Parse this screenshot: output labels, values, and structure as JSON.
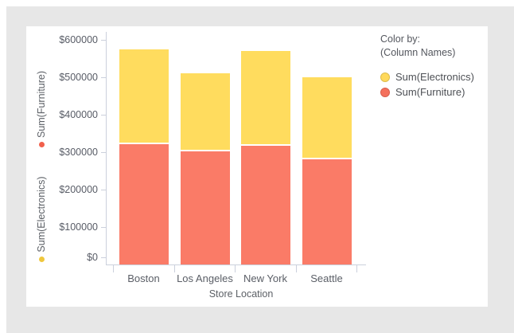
{
  "frame": {
    "background_color": "#e7e7e7",
    "card_color": "#ffffff",
    "axis_line_color": "#cbd0dc"
  },
  "legend": {
    "title": "Color by:",
    "subtitle": "(Column Names)",
    "items": [
      {
        "label": "Sum(Electronics)",
        "color": "#FFD95B",
        "border": "#DDBC4C"
      },
      {
        "label": "Sum(Furniture)",
        "color": "#F4705C",
        "border": "#D75F4E"
      }
    ]
  },
  "chart_data": {
    "type": "bar",
    "stacked": true,
    "categories": [
      "Boston",
      "Los Angeles",
      "New York",
      "Seattle"
    ],
    "series": [
      {
        "name": "Sum(Furniture)",
        "color": "#FA7B67",
        "values": [
          322000,
          303000,
          318000,
          281000
        ]
      },
      {
        "name": "Sum(Electronics)",
        "color": "#FFDC5E",
        "values": [
          253000,
          209000,
          254000,
          219000
        ]
      }
    ],
    "totals": [
      575000,
      512000,
      572000,
      500000
    ],
    "xlabel": "Store Location",
    "y_axis_labels": [
      {
        "label": "Sum(Furniture)",
        "dot": "#F1604C"
      },
      {
        "label": "Sum(Electronics)",
        "dot": "#EFC73D"
      }
    ],
    "ylim": [
      0,
      600000
    ],
    "ytick_step": 100000,
    "yticks": [
      {
        "label": "$0",
        "value": 0
      },
      {
        "label": "$100000",
        "value": 100000
      },
      {
        "label": "$200000",
        "value": 200000
      },
      {
        "label": "$300000",
        "value": 300000
      },
      {
        "label": "$400000",
        "value": 400000
      },
      {
        "label": "$500000",
        "value": 500000
      },
      {
        "label": "$600000",
        "value": 600000
      }
    ],
    "grid": false,
    "legend_position": "right"
  }
}
